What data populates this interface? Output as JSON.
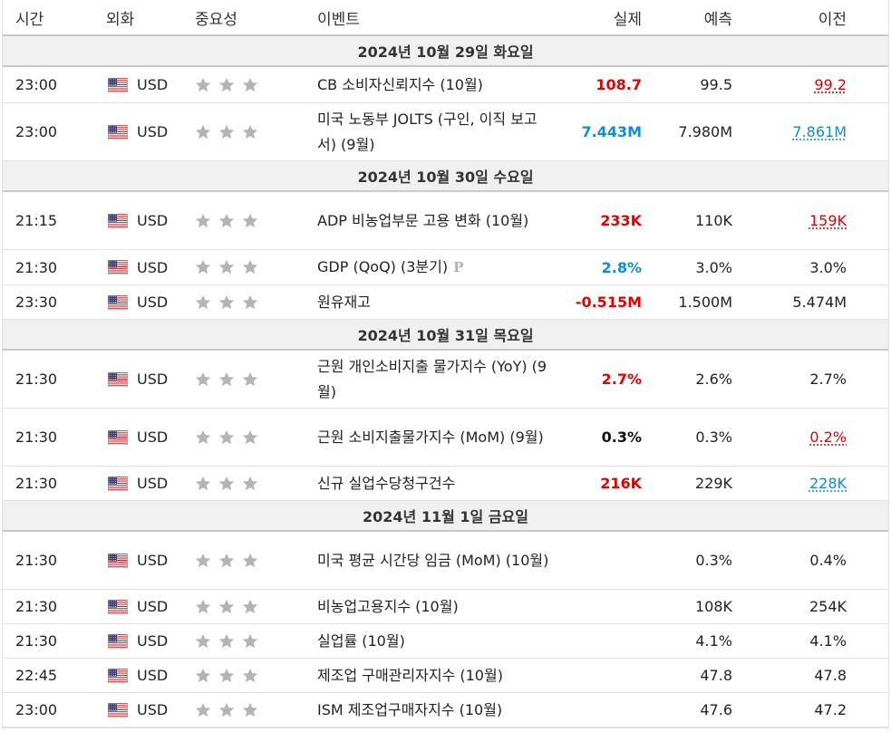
{
  "headers": {
    "time": "시간",
    "currency": "외화",
    "importance": "중요성",
    "event": "이벤트",
    "actual": "실제",
    "forecast": "예측",
    "previous": "이전"
  },
  "icons": {
    "flag": "us-flag-icon",
    "star": "star-icon",
    "preliminary": "preliminary-icon"
  },
  "colors": {
    "red": "#e60000",
    "blue": "#0f8bd8",
    "star": "#b4b4b4"
  },
  "groups": [
    {
      "date": "2024년 10월 29일 화요일",
      "rows": [
        {
          "time": "23:00",
          "currency": "USD",
          "event": "CB 소비자신뢰지수 (10월)",
          "actual": "108.7",
          "actual_color": "red",
          "forecast": "99.5",
          "previous": "99.2",
          "previous_style": "prev-red",
          "h": 40
        },
        {
          "time": "23:00",
          "currency": "USD",
          "event": "미국 노동부 JOLTS (구인, 이직 보고서) (9월)",
          "actual": "7.443M",
          "actual_color": "blue",
          "forecast": "7.980M",
          "previous": "7.861M",
          "previous_style": "prev-blue",
          "h": 64
        }
      ]
    },
    {
      "date": "2024년 10월 30일 수요일",
      "rows": [
        {
          "time": "21:15",
          "currency": "USD",
          "event": "ADP 비농업부문 고용 변화 (10월)",
          "actual": "233K",
          "actual_color": "red",
          "forecast": "110K",
          "previous": "159K",
          "previous_style": "prev-red",
          "h": 64
        },
        {
          "time": "21:30",
          "currency": "USD",
          "event": "GDP (QoQ) (3분기)",
          "preliminary": "P",
          "actual": "2.8%",
          "actual_color": "blue",
          "forecast": "3.0%",
          "previous": "3.0%",
          "previous_style": "",
          "h": 39
        },
        {
          "time": "23:30",
          "currency": "USD",
          "event": "원유재고",
          "actual": "-0.515M",
          "actual_color": "red",
          "forecast": "1.500M",
          "previous": "5.474M",
          "previous_style": "",
          "h": 38
        }
      ]
    },
    {
      "date": "2024년 10월 31일 목요일",
      "rows": [
        {
          "time": "21:30",
          "currency": "USD",
          "event": "근원 개인소비지출 물가지수 (YoY) (9월)",
          "actual": "2.7%",
          "actual_color": "red",
          "forecast": "2.6%",
          "previous": "2.7%",
          "previous_style": "",
          "h": 64
        },
        {
          "time": "21:30",
          "currency": "USD",
          "event": "근원 소비지출물가지수 (MoM) (9월)",
          "actual": "0.3%",
          "actual_color": "black",
          "forecast": "0.3%",
          "previous": "0.2%",
          "previous_style": "prev-red",
          "h": 64
        },
        {
          "time": "21:30",
          "currency": "USD",
          "event": "신규 실업수당청구건수",
          "actual": "216K",
          "actual_color": "red",
          "forecast": "229K",
          "previous": "228K",
          "previous_style": "prev-blue",
          "h": 38
        }
      ]
    },
    {
      "date": "2024년 11월 1일 금요일",
      "rows": [
        {
          "time": "21:30",
          "currency": "USD",
          "event": "미국 평균 시간당 임금 (MoM) (10월)",
          "actual": "",
          "actual_color": "black",
          "forecast": "0.3%",
          "previous": "0.4%",
          "previous_style": "",
          "h": 64
        },
        {
          "time": "21:30",
          "currency": "USD",
          "event": "비농업고용지수 (10월)",
          "actual": "",
          "actual_color": "black",
          "forecast": "108K",
          "previous": "254K",
          "previous_style": "",
          "h": 38
        },
        {
          "time": "21:30",
          "currency": "USD",
          "event": "실업률 (10월)",
          "actual": "",
          "actual_color": "black",
          "forecast": "4.1%",
          "previous": "4.1%",
          "previous_style": "",
          "h": 38
        },
        {
          "time": "22:45",
          "currency": "USD",
          "event": "제조업 구매관리자지수 (10월)",
          "actual": "",
          "actual_color": "black",
          "forecast": "47.8",
          "previous": "47.8",
          "previous_style": "",
          "h": 38
        },
        {
          "time": "23:00",
          "currency": "USD",
          "event": "ISM 제조업구매자지수 (10월)",
          "actual": "",
          "actual_color": "black",
          "forecast": "47.6",
          "previous": "47.2",
          "previous_style": "",
          "h": 38
        }
      ]
    }
  ]
}
